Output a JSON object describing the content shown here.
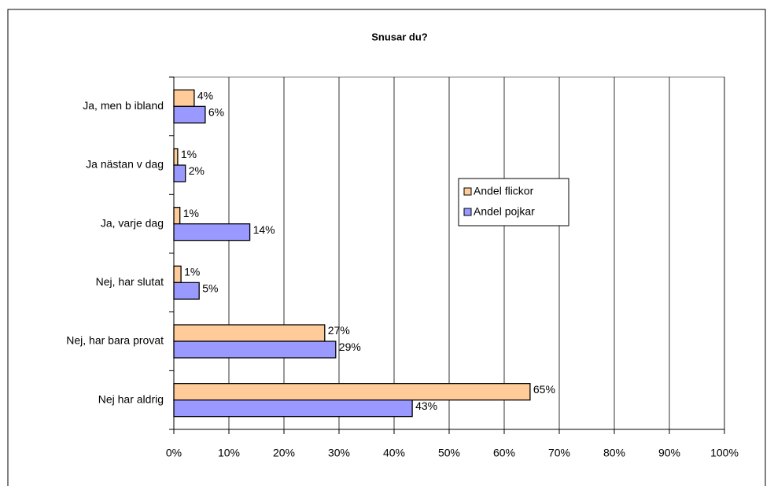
{
  "chart_data": {
    "type": "hbar",
    "title": "Snusar du?",
    "categories": [
      "Ja, men b ibland",
      "Ja nästan v dag",
      "Ja, varje dag",
      "Nej, har slutat",
      "Nej, har bara provat",
      "Nej har aldrig"
    ],
    "series": [
      {
        "name": "Andel flickor",
        "color": "#ffcc99",
        "values": [
          3.7,
          0.7,
          1.1,
          1.3,
          27.4,
          64.7
        ],
        "value_labels": [
          "4%",
          "1%",
          "1%",
          "1%",
          "27%",
          "65%"
        ]
      },
      {
        "name": "Andel pojkar",
        "color": "#9999ff",
        "values": [
          5.7,
          2.1,
          13.8,
          4.6,
          29.4,
          43.3
        ],
        "value_labels": [
          "6%",
          "2%",
          "14%",
          "5%",
          "29%",
          "43%"
        ]
      }
    ],
    "xlim": [
      0,
      100
    ],
    "xticks": [
      {
        "value": 0,
        "label": "0%"
      },
      {
        "value": 10,
        "label": "10%"
      },
      {
        "value": 20,
        "label": "20%"
      },
      {
        "value": 30,
        "label": "30%"
      },
      {
        "value": 40,
        "label": "40%"
      },
      {
        "value": 50,
        "label": "50%"
      },
      {
        "value": 60,
        "label": "60%"
      },
      {
        "value": 70,
        "label": "70%"
      },
      {
        "value": 80,
        "label": "80%"
      },
      {
        "value": 90,
        "label": "90%"
      },
      {
        "value": 100,
        "label": "100%"
      }
    ],
    "grid": true,
    "legend": "right"
  }
}
